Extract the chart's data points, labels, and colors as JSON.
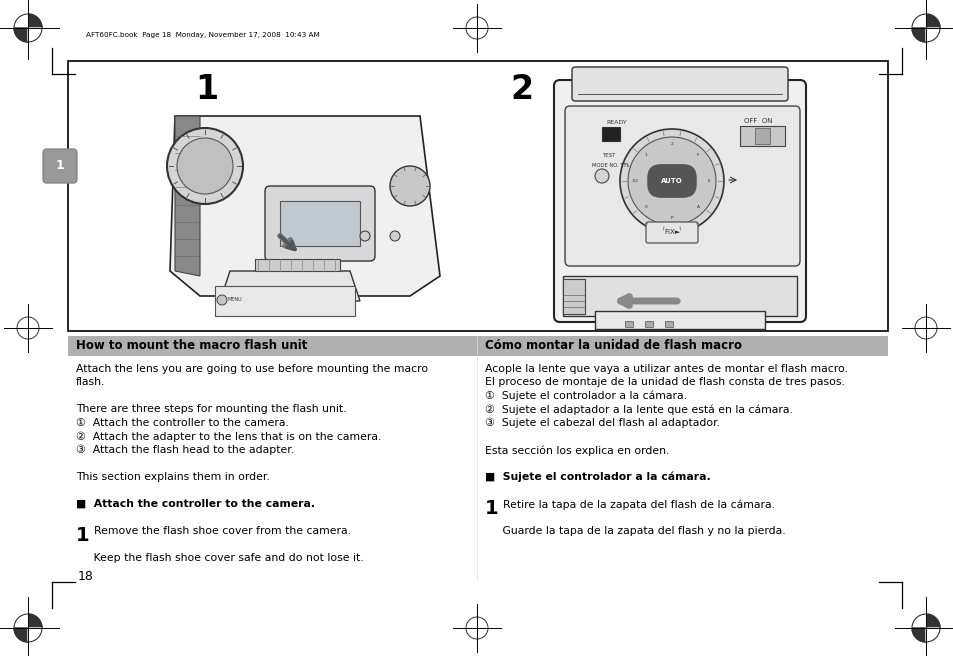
{
  "page_bg": "#ffffff",
  "header_text": "AFT60FC.book  Page 18  Monday, November 17, 2008  10:43 AM",
  "page_number": "18",
  "left_header": "How to mount the macro flash unit",
  "right_header": "Cómo montar la unidad de flash macro",
  "header_bg": "#b0b0b0",
  "left_body": [
    "Attach the lens you are going to use before mounting the macro",
    "flash.",
    "",
    "There are three steps for mounting the flash unit.",
    "①  Attach the controller to the camera.",
    "②  Attach the adapter to the lens that is on the camera.",
    "③  Attach the flash head to the adapter.",
    "",
    "This section explains them in order.",
    "",
    "■  Attach the controller to the camera.",
    "",
    "1  Remove the flash shoe cover from the camera.",
    "",
    "     Keep the flash shoe cover safe and do not lose it."
  ],
  "right_body": [
    "Acople la lente que vaya a utilizar antes de montar el flash macro.",
    "El proceso de montaje de la unidad de flash consta de tres pasos.",
    "①  Sujete el controlador a la cámara.",
    "②  Sujete el adaptador a la lente que está en la cámara.",
    "③  Sujete el cabezal del flash al adaptador.",
    "",
    "Esta sección los explica en orden.",
    "",
    "■  Sujete el controlador a la cámara.",
    "",
    "1  Retire la tapa de la zapata del flash de la cámara.",
    "",
    "     Guarde la tapa de la zapata del flash y no la pierda."
  ],
  "bold_lines_left": [
    10
  ],
  "step_lines_left": [
    12
  ],
  "bold_lines_right": [
    8
  ],
  "step_lines_right": [
    10
  ],
  "font_size_body": 7.8,
  "font_size_header": 8.5
}
